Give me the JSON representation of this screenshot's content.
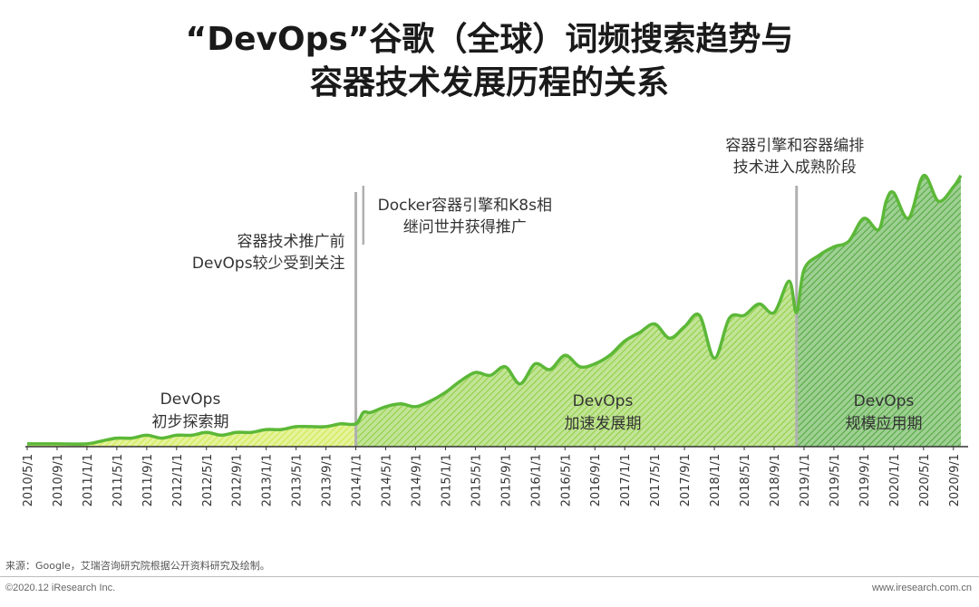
{
  "title_line1": "“DevOps”谷歌（全球）词频搜索趋势与",
  "title_line2": "容器技术发展历程的关系",
  "chart_data": {
    "type": "area",
    "title": "“DevOps”谷歌（全球）词频搜索趋势与容器技术发展历程的关系",
    "xlabel": "",
    "ylabel": "",
    "x_range": [
      "2010-05",
      "2020-10"
    ],
    "ylim": [
      0,
      100
    ],
    "grid": false,
    "legend": "none",
    "tick_labels": [
      "2010/5/1",
      "2010/9/1",
      "2011/1/1",
      "2011/5/1",
      "2011/9/1",
      "2012/1/1",
      "2012/5/1",
      "2012/9/1",
      "2013/1/1",
      "2013/5/1",
      "2013/9/1",
      "2014/1/1",
      "2014/5/1",
      "2014/9/1",
      "2015/1/1",
      "2015/5/1",
      "2015/9/1",
      "2016/1/1",
      "2016/5/1",
      "2016/9/1",
      "2017/1/1",
      "2017/5/1",
      "2017/9/1",
      "2018/1/1",
      "2018/5/1",
      "2018/9/1",
      "2019/1/1",
      "2019/5/1",
      "2019/9/1",
      "2020/1/1",
      "2020/5/1",
      "2020/9/1"
    ],
    "series": [
      {
        "x": [
          "2010-05",
          "2010-09",
          "2011-01",
          "2011-03",
          "2011-05",
          "2011-07",
          "2011-09",
          "2011-11",
          "2012-01",
          "2012-03",
          "2012-05",
          "2012-07",
          "2012-09",
          "2012-11",
          "2013-01",
          "2013-03",
          "2013-05",
          "2013-07",
          "2013-09",
          "2013-11",
          "2014-01",
          "2014-02",
          "2014-03",
          "2014-05",
          "2014-07",
          "2014-09",
          "2014-11",
          "2015-01",
          "2015-03",
          "2015-05",
          "2015-07",
          "2015-09",
          "2015-11",
          "2016-01",
          "2016-03",
          "2016-05",
          "2016-07",
          "2016-09",
          "2016-11",
          "2017-01",
          "2017-03",
          "2017-05",
          "2017-07",
          "2017-09",
          "2017-11",
          "2018-01",
          "2018-03",
          "2018-05",
          "2018-07",
          "2018-09",
          "2018-11",
          "2018-12",
          "2019-01",
          "2019-03",
          "2019-05",
          "2019-07",
          "2019-09",
          "2019-11",
          "2019-12",
          "2020-01",
          "2020-03",
          "2020-05",
          "2020-07",
          "2020-09",
          "2020-10"
        ],
        "y": [
          1,
          1,
          1,
          2,
          3,
          3,
          4,
          3,
          4,
          4,
          5,
          4,
          5,
          5,
          6,
          6,
          7,
          7,
          7,
          8,
          8,
          12,
          12,
          14,
          15,
          14,
          16,
          19,
          23,
          26,
          25,
          28,
          22,
          29,
          27,
          32,
          28,
          29,
          32,
          37,
          40,
          43,
          38,
          42,
          46,
          31,
          45,
          46,
          50,
          47,
          58,
          47,
          62,
          67,
          70,
          72,
          80,
          76,
          86,
          89,
          80,
          95,
          86,
          91,
          95
        ]
      }
    ],
    "phase_labels": [
      {
        "line1": "DevOps",
        "line2": "初步探索期"
      },
      {
        "line1": "DevOps",
        "line2": "加速发展期"
      },
      {
        "line1": "DevOps",
        "line2": "规模应用期"
      }
    ],
    "annotations": [
      {
        "date": "2014-01",
        "line1": "容器技术推广前",
        "line2": "DevOps较少受到关注"
      },
      {
        "date": "2014-02",
        "line1": "Docker容器引擎和K8s相",
        "line2": "继问世并获得推广"
      },
      {
        "date": "2018-12",
        "line1": "容器引擎和容器编排",
        "line2": "技术进入成熟阶段"
      }
    ],
    "colors": {
      "line": "#5cb838",
      "phase1_fill": "#cfe84a",
      "phase2_fill": "#8fce42",
      "phase3_fill": "#4fa83a",
      "divider": "#b0b0b0",
      "axis": "#333333"
    }
  },
  "footer": {
    "source": "来源：Google，艾瑞咨询研究院根据公开资料研究及绘制。",
    "copyright": "©2020.12 iResearch Inc.",
    "website": "www.iresearch.com.cn"
  }
}
